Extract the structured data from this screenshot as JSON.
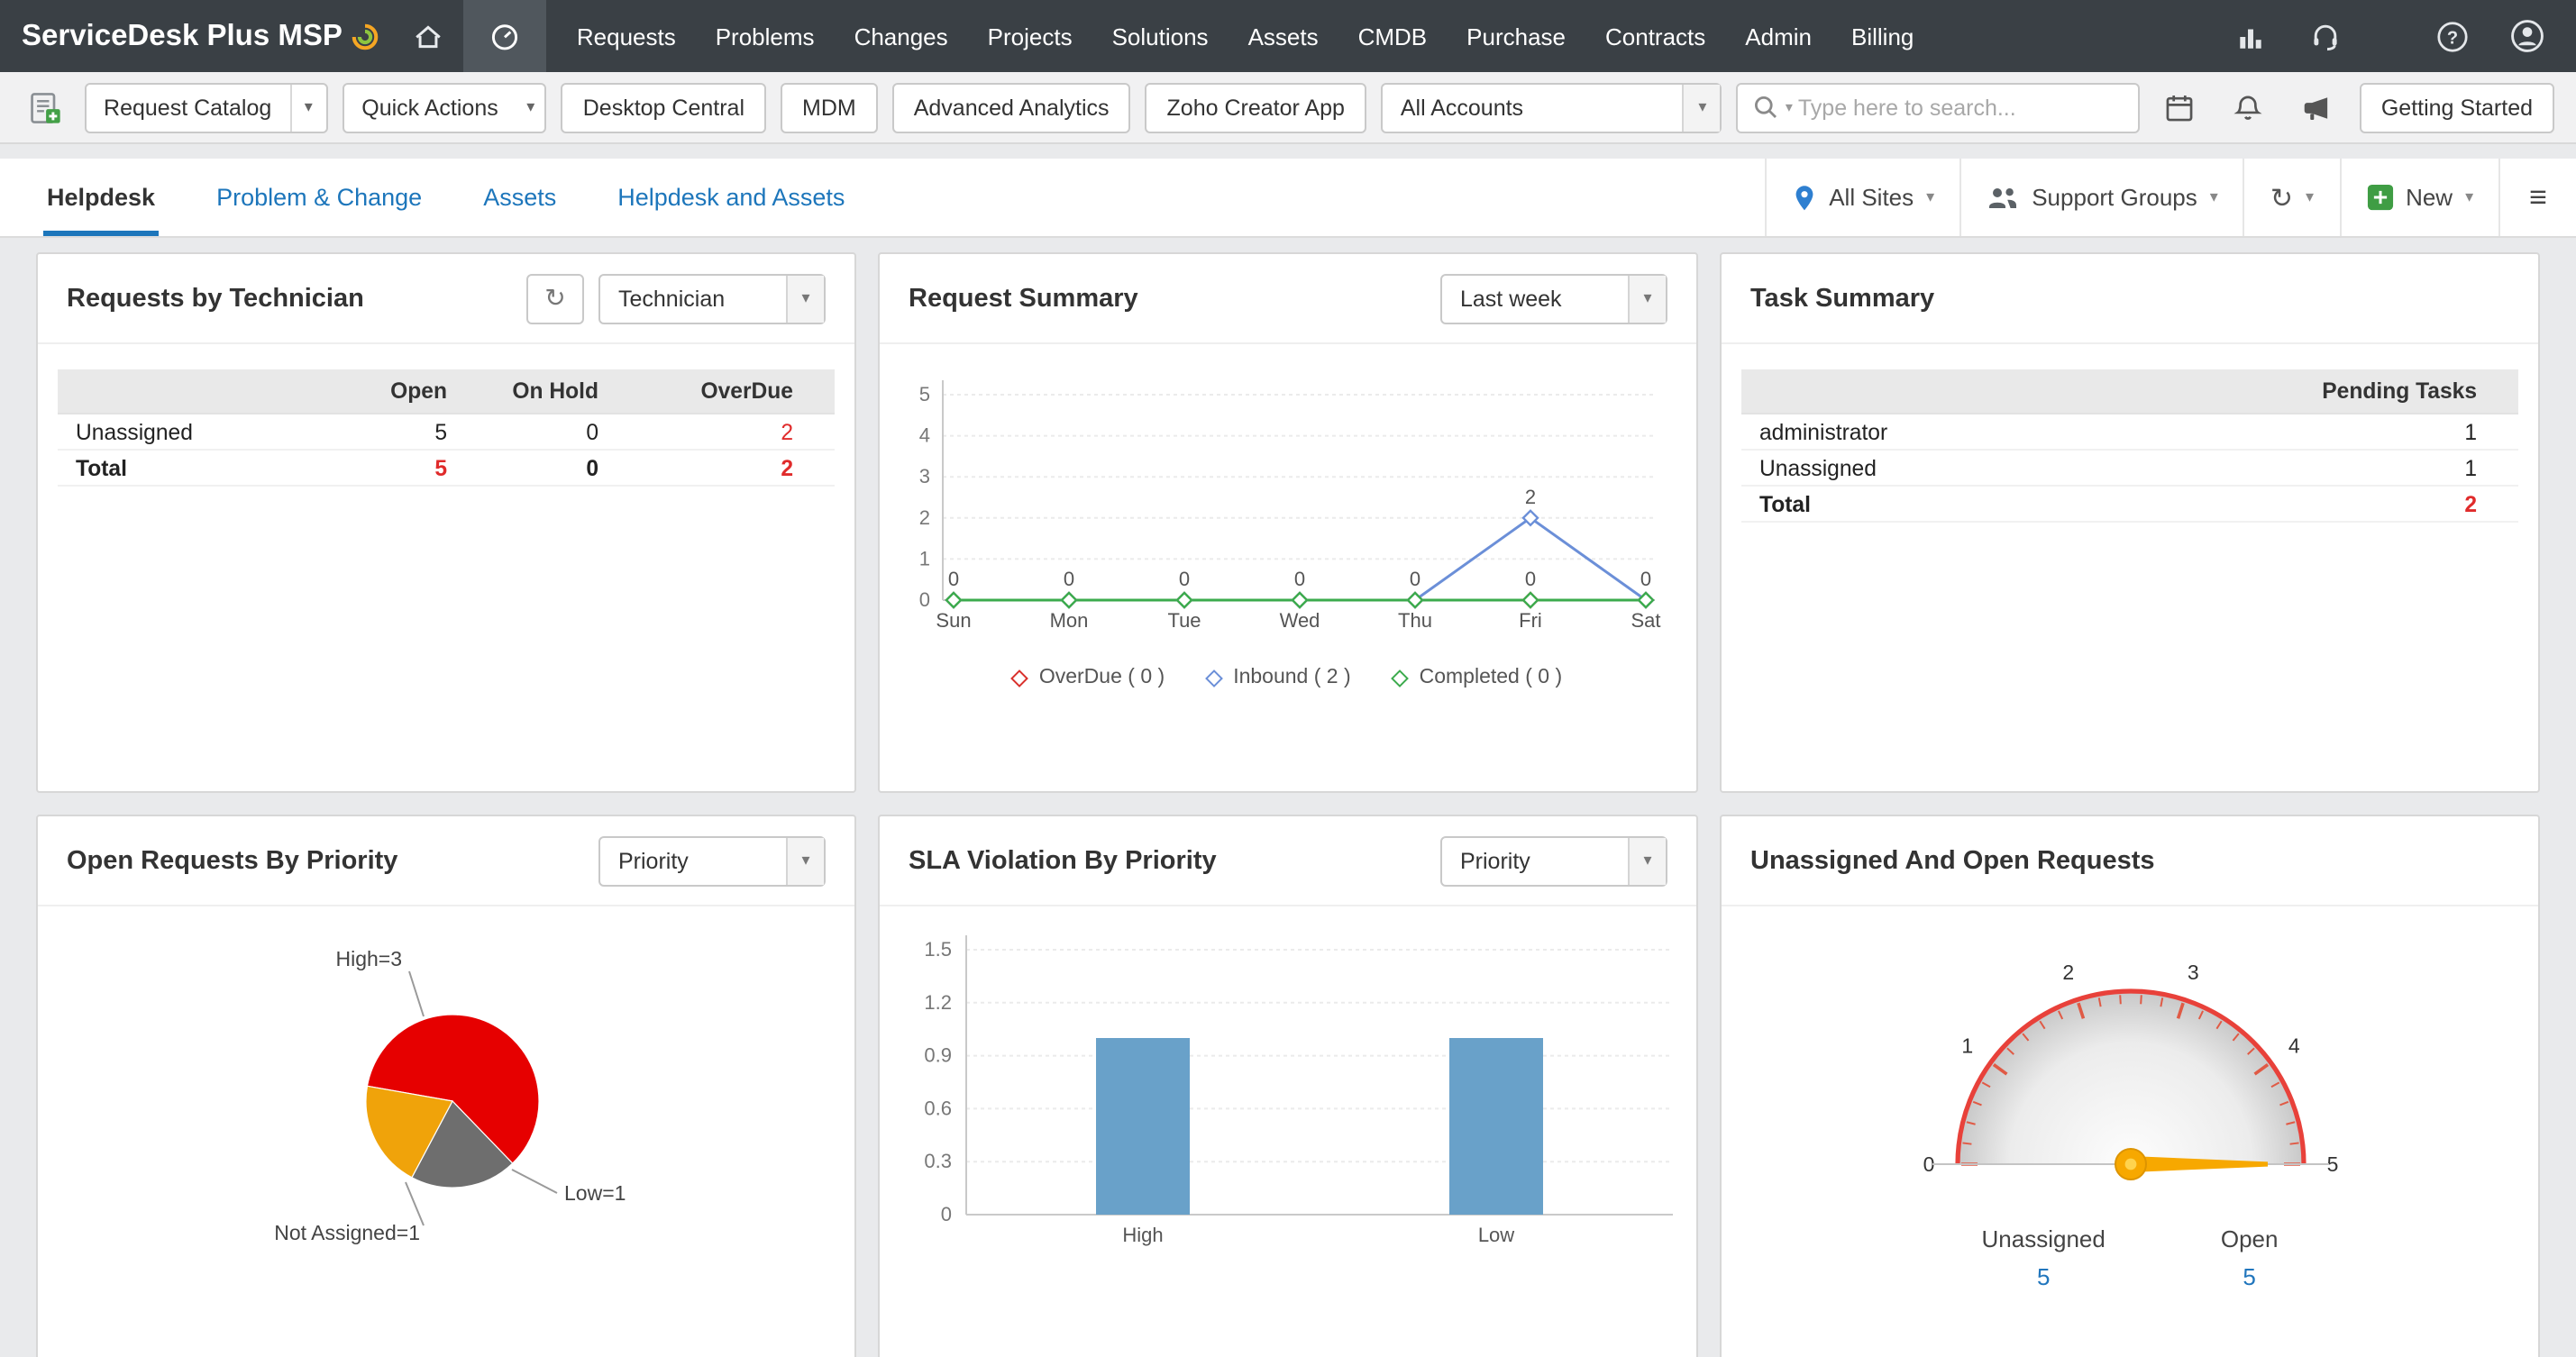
{
  "icons": {
    "caret": "▾",
    "refresh": "↻",
    "hamburger": "≡"
  },
  "navbar": {
    "logo_text": "ServiceDesk Plus MSP",
    "items": [
      "Requests",
      "Problems",
      "Changes",
      "Projects",
      "Solutions",
      "Assets",
      "CMDB",
      "Purchase",
      "Contracts",
      "Admin",
      "Billing"
    ]
  },
  "toolbar": {
    "request_catalog_label": "Request Catalog",
    "quick_actions_label": "Quick Actions",
    "app_buttons": [
      "Desktop Central",
      "MDM",
      "Advanced Analytics",
      "Zoho Creator App"
    ],
    "accounts_select_value": "All Accounts",
    "search_placeholder": "Type here to search...",
    "getting_started_label": "Getting Started"
  },
  "tabbar": {
    "tabs": [
      {
        "label": "Helpdesk",
        "active": true
      },
      {
        "label": "Problem & Change",
        "active": false
      },
      {
        "label": "Assets",
        "active": false
      },
      {
        "label": "Helpdesk and Assets",
        "active": false
      }
    ],
    "all_sites_label": "All Sites",
    "support_groups_label": "Support Groups",
    "new_label": "New"
  },
  "panels": {
    "requests_by_technician": {
      "title": "Requests by Technician",
      "group_by_value": "Technician",
      "table": {
        "columns": [
          "",
          "Open",
          "On Hold",
          "OverDue"
        ],
        "rows": [
          {
            "label": "Unassigned",
            "bold": false,
            "cells": [
              {
                "v": "5",
                "red": false
              },
              {
                "v": "0",
                "red": false
              },
              {
                "v": "2",
                "red": true
              }
            ]
          },
          {
            "label": "Total",
            "bold": true,
            "cells": [
              {
                "v": "5",
                "red": true
              },
              {
                "v": "0",
                "red": false
              },
              {
                "v": "2",
                "red": true
              }
            ]
          }
        ]
      }
    },
    "request_summary": {
      "title": "Request Summary",
      "period_value": "Last week",
      "chart_data": {
        "type": "line",
        "x": [
          "Sun",
          "Mon",
          "Tue",
          "Wed",
          "Thu",
          "Fri",
          "Sat"
        ],
        "ylim": [
          0,
          5
        ],
        "yticks": [
          0,
          1,
          2,
          3,
          4,
          5
        ],
        "series": [
          {
            "name": "OverDue",
            "color": "#d9302c",
            "values": [
              0,
              0,
              0,
              0,
              0,
              0,
              0
            ]
          },
          {
            "name": "Inbound",
            "color": "#6b8fd8",
            "values": [
              0,
              0,
              0,
              0,
              0,
              2,
              0
            ]
          },
          {
            "name": "Completed",
            "color": "#3cab4d",
            "values": [
              0,
              0,
              0,
              0,
              0,
              0,
              0
            ]
          }
        ],
        "legend": [
          "OverDue ( 0 )",
          "Inbound ( 2 )",
          "Completed ( 0 )"
        ]
      }
    },
    "task_summary": {
      "title": "Task Summary",
      "table": {
        "columns": [
          "",
          "Pending Tasks"
        ],
        "rows": [
          {
            "label": "administrator",
            "bold": false,
            "cells": [
              {
                "v": "1",
                "red": false
              }
            ]
          },
          {
            "label": "Unassigned",
            "bold": false,
            "cells": [
              {
                "v": "1",
                "red": false
              }
            ]
          },
          {
            "label": "Total",
            "bold": true,
            "cells": [
              {
                "v": "2",
                "red": true
              }
            ]
          }
        ]
      }
    },
    "open_requests_by_priority": {
      "title": "Open Requests By Priority",
      "group_by_value": "Priority",
      "chart_data": {
        "type": "pie",
        "start_angle": 170,
        "slices": [
          {
            "label": "High=3",
            "value": 3,
            "color": "#e60000"
          },
          {
            "label": "Low=1",
            "value": 1,
            "color": "#6e6e6e"
          },
          {
            "label": "Not Assigned=1",
            "value": 1,
            "color": "#f0a30a"
          }
        ]
      }
    },
    "sla_violation_by_priority": {
      "title": "SLA Violation By Priority",
      "group_by_value": "Priority",
      "chart_data": {
        "type": "bar",
        "categories": [
          "High",
          "Low"
        ],
        "values": [
          1,
          1
        ],
        "yticks": [
          0,
          0.3,
          0.6,
          0.9,
          1.2,
          1.5
        ],
        "ylim": [
          0,
          1.5
        ],
        "bar_color": "#69a1c9"
      }
    },
    "unassigned_and_open": {
      "title": "Unassigned And Open Requests",
      "chart_data": {
        "type": "gauge",
        "min": 0,
        "max": 5,
        "ticks": [
          0,
          1,
          2,
          3,
          4,
          5
        ],
        "value": 5,
        "arc_color": "#e8413a",
        "needle_color": "#f7a800"
      },
      "stats": [
        {
          "label": "Unassigned",
          "value": "5"
        },
        {
          "label": "Open",
          "value": "5"
        }
      ]
    }
  }
}
